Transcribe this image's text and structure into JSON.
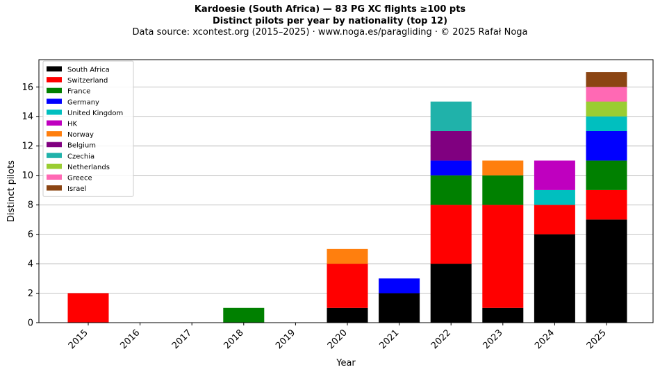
{
  "chart_data": {
    "type": "bar",
    "stacked": true,
    "title": "Kardoesie (South Africa)  —  83 PG XC flights ≥100 pts",
    "subtitle": "Distinct pilots per year by nationality (top 12)",
    "source_line": "Data source: xcontest.org (2015–2025)  ·  www.noga.es/paragliding  ·  © 2025 Rafał Noga",
    "xlabel": "Year",
    "ylabel": "Distinct pilots",
    "ylim": [
      0,
      17.85
    ],
    "yticks": [
      0,
      2,
      4,
      6,
      8,
      10,
      12,
      14,
      16
    ],
    "grid": "horizontal",
    "legend_position": "upper-left",
    "categories": [
      "2015",
      "2016",
      "2017",
      "2018",
      "2019",
      "2020",
      "2021",
      "2022",
      "2023",
      "2024",
      "2025"
    ],
    "series": [
      {
        "name": "South Africa",
        "color": "#000000",
        "values": [
          0,
          0,
          0,
          0,
          0,
          1,
          2,
          4,
          1,
          6,
          7
        ]
      },
      {
        "name": "Switzerland",
        "color": "#ff0000",
        "values": [
          2,
          0,
          0,
          0,
          0,
          3,
          0,
          4,
          7,
          2,
          2
        ]
      },
      {
        "name": "France",
        "color": "#008000",
        "values": [
          0,
          0,
          0,
          1,
          0,
          0,
          0,
          2,
          2,
          0,
          2
        ]
      },
      {
        "name": "Germany",
        "color": "#0000ff",
        "values": [
          0,
          0,
          0,
          0,
          0,
          0,
          1,
          1,
          0,
          0,
          2
        ]
      },
      {
        "name": "United Kingdom",
        "color": "#00bfbf",
        "values": [
          0,
          0,
          0,
          0,
          0,
          0,
          0,
          0,
          0,
          1,
          1
        ]
      },
      {
        "name": "HK",
        "color": "#bf00bf",
        "values": [
          0,
          0,
          0,
          0,
          0,
          0,
          0,
          0,
          0,
          2,
          0
        ]
      },
      {
        "name": "Norway",
        "color": "#ff7f0e",
        "values": [
          0,
          0,
          0,
          0,
          0,
          1,
          0,
          0,
          1,
          0,
          0
        ]
      },
      {
        "name": "Belgium",
        "color": "#800080",
        "values": [
          0,
          0,
          0,
          0,
          0,
          0,
          0,
          2,
          0,
          0,
          0
        ]
      },
      {
        "name": "Czechia",
        "color": "#20b2aa",
        "values": [
          0,
          0,
          0,
          0,
          0,
          0,
          0,
          2,
          0,
          0,
          0
        ]
      },
      {
        "name": "Netherlands",
        "color": "#9acd32",
        "values": [
          0,
          0,
          0,
          0,
          0,
          0,
          0,
          0,
          0,
          0,
          1
        ]
      },
      {
        "name": "Greece",
        "color": "#ff69b4",
        "values": [
          0,
          0,
          0,
          0,
          0,
          0,
          0,
          0,
          0,
          0,
          1
        ]
      },
      {
        "name": "Israel",
        "color": "#8b4513",
        "values": [
          0,
          0,
          0,
          0,
          0,
          0,
          0,
          0,
          0,
          0,
          1
        ]
      }
    ]
  }
}
